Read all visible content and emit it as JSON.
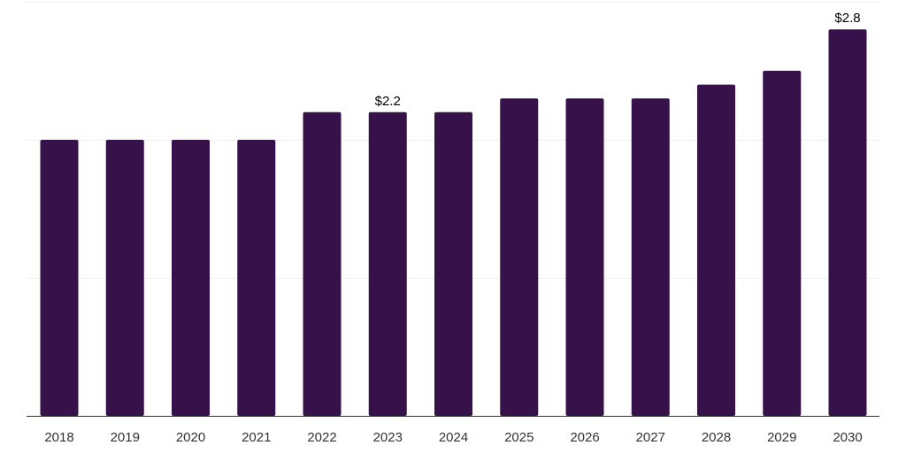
{
  "chart_data": {
    "type": "bar",
    "categories": [
      "2018",
      "2019",
      "2020",
      "2021",
      "2022",
      "2023",
      "2024",
      "2025",
      "2026",
      "2027",
      "2028",
      "2029",
      "2030"
    ],
    "values": [
      2.0,
      2.0,
      2.0,
      2.0,
      2.2,
      2.2,
      2.2,
      2.3,
      2.3,
      2.3,
      2.4,
      2.5,
      2.8
    ],
    "data_labels": [
      {
        "index": 5,
        "text": "$2.2"
      },
      {
        "index": 12,
        "text": "$2.8"
      }
    ],
    "title": "",
    "xlabel": "",
    "ylabel": "",
    "ylim": [
      0,
      3.0
    ],
    "grid": true,
    "legend": "none"
  },
  "colors": {
    "bar": "#36114a",
    "grid": "#eeeeee",
    "axis": "#333333",
    "background": "#ffffff"
  }
}
